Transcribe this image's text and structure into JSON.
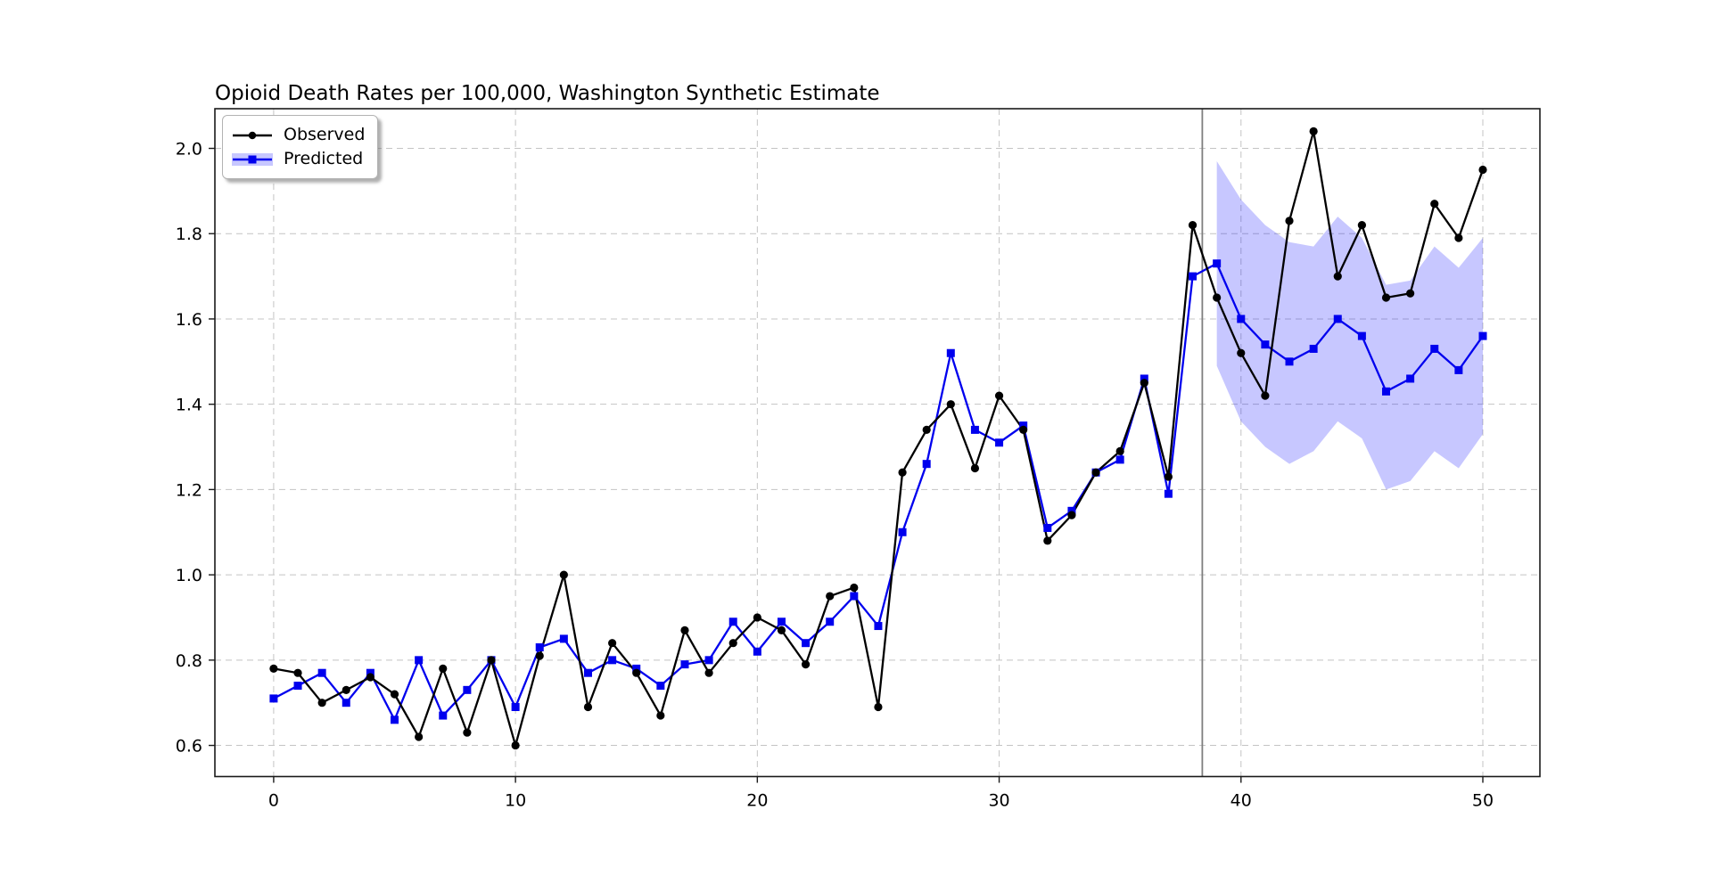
{
  "page": {
    "background": "#ffffff"
  },
  "chart_data": {
    "type": "line",
    "title": "Opioid Death Rates per 100,000, Washington Synthetic Estimate",
    "xlabel": "",
    "ylabel": "",
    "xlim": [
      -2.43,
      52.36
    ],
    "ylim": [
      0.527,
      2.093
    ],
    "xticks": [
      0,
      10,
      20,
      30,
      40,
      50
    ],
    "yticks": [
      0.6,
      0.8,
      1.0,
      1.2,
      1.4,
      1.6,
      1.8,
      2.0
    ],
    "grid": "dashed both axes",
    "legend_position": "upper-left",
    "x": [
      0,
      1,
      2,
      3,
      4,
      5,
      6,
      7,
      8,
      9,
      10,
      11,
      12,
      13,
      14,
      15,
      16,
      17,
      18,
      19,
      20,
      21,
      22,
      23,
      24,
      25,
      26,
      27,
      28,
      29,
      30,
      31,
      32,
      33,
      34,
      35,
      36,
      37,
      38,
      39,
      40,
      41,
      42,
      43,
      44,
      45,
      46,
      47,
      48,
      49,
      50
    ],
    "series": [
      {
        "name": "Observed",
        "color": "#000000",
        "marker": "circle",
        "values": [
          0.78,
          0.77,
          0.7,
          0.73,
          0.76,
          0.72,
          0.62,
          0.78,
          0.63,
          0.8,
          0.6,
          0.81,
          1.0,
          0.69,
          0.84,
          0.77,
          0.67,
          0.87,
          0.77,
          0.84,
          0.9,
          0.87,
          0.79,
          0.95,
          0.97,
          0.69,
          1.24,
          1.34,
          1.4,
          1.25,
          1.42,
          1.34,
          1.08,
          1.14,
          1.24,
          1.29,
          1.45,
          1.23,
          1.82,
          1.65,
          1.52,
          1.42,
          1.83,
          2.04,
          1.7,
          1.82,
          1.65,
          1.66,
          1.87,
          1.79,
          1.95
        ]
      },
      {
        "name": "Predicted",
        "color": "#0000ee",
        "marker": "square",
        "values": [
          0.71,
          0.74,
          0.77,
          0.7,
          0.77,
          0.66,
          0.8,
          0.67,
          0.73,
          0.8,
          0.69,
          0.83,
          0.85,
          0.77,
          0.8,
          0.78,
          0.74,
          0.79,
          0.8,
          0.89,
          0.82,
          0.89,
          0.84,
          0.89,
          0.95,
          0.88,
          1.1,
          1.26,
          1.52,
          1.34,
          1.31,
          1.35,
          1.11,
          1.15,
          1.24,
          1.27,
          1.46,
          1.19,
          1.7,
          1.73,
          1.6,
          1.54,
          1.5,
          1.53,
          1.6,
          1.56,
          1.43,
          1.46,
          1.53,
          1.48,
          1.56
        ]
      }
    ],
    "confidence_band": {
      "x": [
        39,
        40,
        41,
        42,
        43,
        44,
        45,
        46,
        47,
        48,
        49,
        50
      ],
      "upper": [
        1.97,
        1.88,
        1.82,
        1.78,
        1.77,
        1.84,
        1.79,
        1.68,
        1.69,
        1.77,
        1.72,
        1.79
      ],
      "lower": [
        1.49,
        1.36,
        1.3,
        1.26,
        1.29,
        1.36,
        1.32,
        1.2,
        1.22,
        1.29,
        1.25,
        1.33
      ],
      "fill": "rgba(0,0,255,0.22)"
    },
    "treatment_line": {
      "x": 38.4,
      "color": "#7f7f7f"
    },
    "grid_color": "#c4c4c4",
    "spine_color": "#1a1a1a"
  },
  "legend": {
    "entries": [
      {
        "label": "Observed"
      },
      {
        "label": "Predicted"
      }
    ]
  }
}
